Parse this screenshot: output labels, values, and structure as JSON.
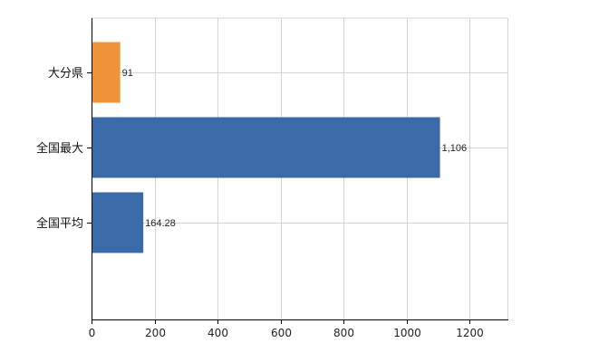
{
  "chart_data": {
    "type": "bar",
    "orientation": "horizontal",
    "categories": [
      "大分県",
      "全国最大",
      "全国平均"
    ],
    "values": [
      91,
      1106,
      164.28
    ],
    "value_labels": [
      "91",
      "1,106",
      "164.28"
    ],
    "colors": [
      "#f0923a",
      "#3a6aa8",
      "#3a6aa8"
    ],
    "xlim": [
      0,
      1320
    ],
    "xticks": [
      0,
      200,
      400,
      600,
      800,
      1000,
      1200
    ],
    "grid": "vertical",
    "legend": "none"
  }
}
